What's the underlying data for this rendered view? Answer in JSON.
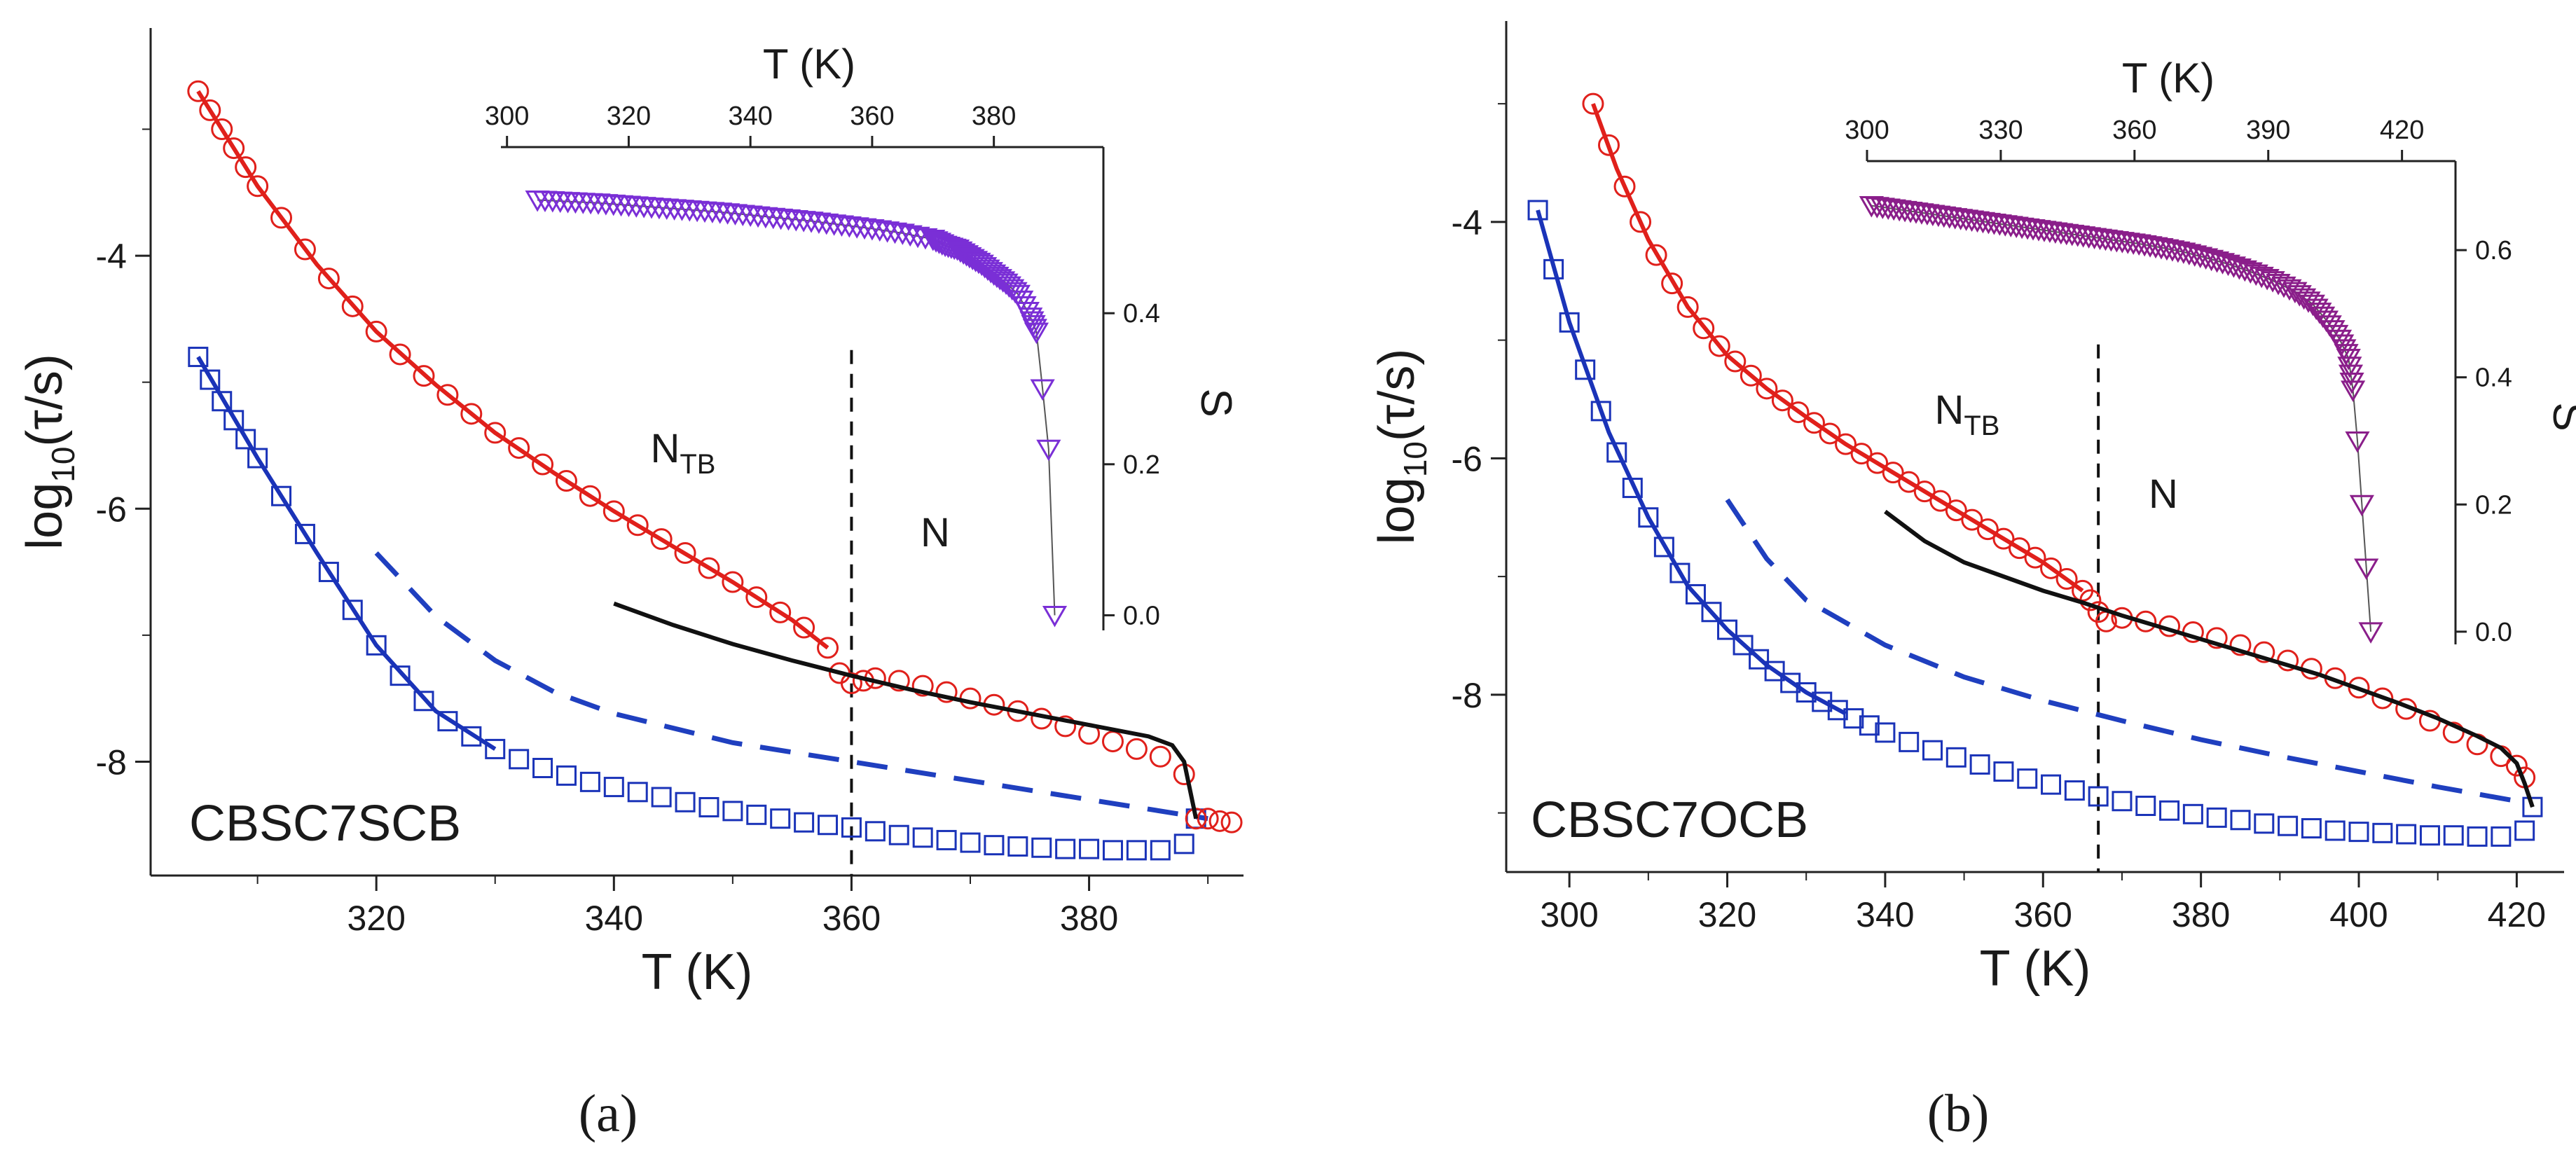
{
  "chart_data": [
    {
      "type": "scatter",
      "panel_label": "(a)",
      "sample_label": "CBSC7SCB",
      "xlabel": "T (K)",
      "ylabel": "log10(τ/s)",
      "ylabel_main": "log",
      "ylabel_sub": "10",
      "ylabel_tail": "(τ/s)",
      "xlim": [
        301,
        393
      ],
      "ylim": [
        -8.9,
        -2.2
      ],
      "xticks": [
        "320",
        "340",
        "360",
        "380"
      ],
      "yticks": [
        "-4",
        "-6",
        "-8"
      ],
      "phase_left_main": "N",
      "phase_left_sub": "TB",
      "phase_right": "N",
      "transition_T": 360,
      "series": [
        {
          "name": "red circles",
          "x": [
            305,
            306,
            307,
            308,
            309,
            310,
            312,
            314,
            316,
            318,
            320,
            322,
            324,
            326,
            328,
            330,
            332,
            334,
            336,
            338,
            340,
            342,
            344,
            346,
            348,
            350,
            352,
            354,
            356,
            358,
            359,
            360,
            361,
            362,
            364,
            366,
            368,
            370,
            372,
            374,
            376,
            378,
            380,
            382,
            384,
            386,
            388,
            389,
            390,
            391,
            392
          ],
          "y": [
            -2.7,
            -2.85,
            -3.0,
            -3.15,
            -3.3,
            -3.45,
            -3.7,
            -3.95,
            -4.18,
            -4.4,
            -4.6,
            -4.78,
            -4.95,
            -5.1,
            -5.25,
            -5.4,
            -5.52,
            -5.65,
            -5.78,
            -5.9,
            -6.02,
            -6.13,
            -6.24,
            -6.35,
            -6.47,
            -6.58,
            -6.7,
            -6.82,
            -6.94,
            -7.1,
            -7.3,
            -7.38,
            -7.36,
            -7.34,
            -7.36,
            -7.4,
            -7.45,
            -7.5,
            -7.55,
            -7.6,
            -7.66,
            -7.72,
            -7.78,
            -7.84,
            -7.9,
            -7.96,
            -8.1,
            -8.45,
            -8.45,
            -8.47,
            -8.48
          ]
        },
        {
          "name": "blue squares",
          "x": [
            305,
            306,
            307,
            308,
            309,
            310,
            312,
            314,
            316,
            318,
            320,
            322,
            324,
            326,
            328,
            330,
            332,
            334,
            336,
            338,
            340,
            342,
            344,
            346,
            348,
            350,
            352,
            354,
            356,
            358,
            360,
            362,
            364,
            366,
            368,
            370,
            372,
            374,
            376,
            378,
            380,
            382,
            384,
            386,
            388,
            389
          ],
          "y": [
            -4.8,
            -4.98,
            -5.15,
            -5.3,
            -5.45,
            -5.6,
            -5.9,
            -6.2,
            -6.5,
            -6.8,
            -7.08,
            -7.32,
            -7.52,
            -7.68,
            -7.8,
            -7.9,
            -7.98,
            -8.05,
            -8.11,
            -8.16,
            -8.2,
            -8.24,
            -8.28,
            -8.32,
            -8.36,
            -8.39,
            -8.42,
            -8.45,
            -8.48,
            -8.5,
            -8.52,
            -8.55,
            -8.58,
            -8.6,
            -8.62,
            -8.64,
            -8.66,
            -8.67,
            -8.68,
            -8.69,
            -8.69,
            -8.7,
            -8.7,
            -8.7,
            -8.65,
            -8.45
          ]
        },
        {
          "name": "red fit",
          "x": [
            305,
            310,
            315,
            320,
            325,
            330,
            335,
            340,
            345,
            350,
            355,
            358
          ],
          "y": [
            -2.7,
            -3.45,
            -4.07,
            -4.6,
            -5.02,
            -5.4,
            -5.72,
            -6.02,
            -6.3,
            -6.58,
            -6.88,
            -7.1
          ]
        },
        {
          "name": "blue fit",
          "x": [
            305,
            310,
            315,
            320,
            325,
            330
          ],
          "y": [
            -4.8,
            -5.6,
            -6.35,
            -7.08,
            -7.6,
            -7.9
          ]
        },
        {
          "name": "black fit",
          "x": [
            340,
            345,
            350,
            355,
            360,
            365,
            370,
            375,
            380,
            385,
            387,
            388,
            389
          ],
          "y": [
            -6.75,
            -6.92,
            -7.07,
            -7.2,
            -7.32,
            -7.43,
            -7.53,
            -7.62,
            -7.71,
            -7.8,
            -7.87,
            -8.0,
            -8.45
          ]
        },
        {
          "name": "blue dashed",
          "x": [
            320,
            325,
            330,
            335,
            340,
            350,
            360,
            370,
            380,
            390
          ],
          "y": [
            -6.35,
            -6.85,
            -7.2,
            -7.45,
            -7.62,
            -7.85,
            -8.0,
            -8.15,
            -8.3,
            -8.45
          ]
        }
      ],
      "inset": {
        "xlabel": "T (K)",
        "ylabel": "S",
        "xlim": [
          299,
          398
        ],
        "ylim": [
          -0.02,
          0.62
        ],
        "xticks": [
          "300",
          "320",
          "340",
          "360",
          "380"
        ],
        "yticks": [
          "0.0",
          "0.2",
          "0.4"
        ],
        "x": [
          305,
          310,
          315,
          320,
          325,
          330,
          335,
          340,
          345,
          350,
          355,
          360,
          365,
          370,
          372,
          374,
          376,
          378,
          380,
          382,
          384,
          386,
          387,
          388,
          389,
          390
        ],
        "y": [
          0.55,
          0.548,
          0.546,
          0.543,
          0.54,
          0.537,
          0.534,
          0.53,
          0.526,
          0.522,
          0.517,
          0.512,
          0.506,
          0.498,
          0.49,
          0.485,
          0.475,
          0.465,
          0.452,
          0.44,
          0.425,
          0.395,
          0.375,
          0.3,
          0.22,
          0.0
        ]
      }
    },
    {
      "type": "scatter",
      "panel_label": "(b)",
      "sample_label": "CBSC7OCB",
      "xlabel": "T (K)",
      "ylabel": "log10(τ/s)",
      "ylabel_main": "log",
      "ylabel_sub": "10",
      "ylabel_tail": "(τ/s)",
      "xlim": [
        292,
        426
      ],
      "ylim": [
        -9.5,
        -2.3
      ],
      "xticks": [
        "300",
        "320",
        "340",
        "360",
        "380",
        "400",
        "420"
      ],
      "yticks": [
        "-4",
        "-6",
        "-8"
      ],
      "phase_left_main": "N",
      "phase_left_sub": "TB",
      "phase_right": "N",
      "transition_T": 367,
      "series": [
        {
          "name": "red circles",
          "x": [
            303,
            305,
            307,
            309,
            311,
            313,
            315,
            317,
            319,
            321,
            323,
            325,
            327,
            329,
            331,
            333,
            335,
            337,
            339,
            341,
            343,
            345,
            347,
            349,
            351,
            353,
            355,
            357,
            359,
            361,
            363,
            365,
            366,
            367,
            368,
            370,
            373,
            376,
            379,
            382,
            385,
            388,
            391,
            394,
            397,
            400,
            403,
            406,
            409,
            412,
            415,
            418,
            420,
            421
          ],
          "y": [
            -3.0,
            -3.35,
            -3.7,
            -4.0,
            -4.28,
            -4.52,
            -4.72,
            -4.9,
            -5.05,
            -5.18,
            -5.3,
            -5.41,
            -5.51,
            -5.61,
            -5.7,
            -5.79,
            -5.88,
            -5.96,
            -6.04,
            -6.12,
            -6.2,
            -6.28,
            -6.36,
            -6.44,
            -6.52,
            -6.6,
            -6.68,
            -6.76,
            -6.84,
            -6.93,
            -7.02,
            -7.12,
            -7.2,
            -7.3,
            -7.38,
            -7.35,
            -7.38,
            -7.42,
            -7.47,
            -7.52,
            -7.58,
            -7.64,
            -7.71,
            -7.78,
            -7.86,
            -7.94,
            -8.03,
            -8.12,
            -8.22,
            -8.32,
            -8.42,
            -8.52,
            -8.6,
            -8.7
          ]
        },
        {
          "name": "blue squares",
          "x": [
            296,
            298,
            300,
            302,
            304,
            306,
            308,
            310,
            312,
            314,
            316,
            318,
            320,
            322,
            324,
            326,
            328,
            330,
            332,
            334,
            336,
            338,
            340,
            343,
            346,
            349,
            352,
            355,
            358,
            361,
            364,
            367,
            370,
            373,
            376,
            379,
            382,
            385,
            388,
            391,
            394,
            397,
            400,
            403,
            406,
            409,
            412,
            415,
            418,
            421,
            422
          ],
          "y": [
            -3.9,
            -4.4,
            -4.85,
            -5.25,
            -5.6,
            -5.95,
            -6.25,
            -6.5,
            -6.75,
            -6.97,
            -7.15,
            -7.3,
            -7.45,
            -7.58,
            -7.7,
            -7.8,
            -7.9,
            -7.98,
            -8.06,
            -8.13,
            -8.2,
            -8.26,
            -8.32,
            -8.4,
            -8.47,
            -8.53,
            -8.59,
            -8.65,
            -8.71,
            -8.76,
            -8.81,
            -8.86,
            -8.9,
            -8.94,
            -8.98,
            -9.01,
            -9.04,
            -9.06,
            -9.09,
            -9.11,
            -9.13,
            -9.15,
            -9.16,
            -9.17,
            -9.18,
            -9.19,
            -9.19,
            -9.2,
            -9.2,
            -9.15,
            -8.95
          ]
        },
        {
          "name": "red fit",
          "x": [
            303,
            306,
            310,
            315,
            320,
            325,
            330,
            335,
            340,
            345,
            350,
            355,
            360,
            365
          ],
          "y": [
            -3.0,
            -3.55,
            -4.15,
            -4.72,
            -5.13,
            -5.41,
            -5.65,
            -5.88,
            -6.08,
            -6.28,
            -6.48,
            -6.68,
            -6.88,
            -7.12
          ]
        },
        {
          "name": "blue fit",
          "x": [
            296,
            300,
            305,
            310,
            315,
            320,
            325,
            330,
            335
          ],
          "y": [
            -3.9,
            -4.85,
            -5.78,
            -6.5,
            -7.08,
            -7.45,
            -7.75,
            -7.98,
            -8.16
          ]
        },
        {
          "name": "black fit",
          "x": [
            340,
            345,
            350,
            355,
            360,
            365,
            370,
            375,
            380,
            385,
            390,
            395,
            400,
            405,
            410,
            415,
            418,
            420,
            421,
            422
          ],
          "y": [
            -6.45,
            -6.7,
            -6.88,
            -7.0,
            -7.12,
            -7.22,
            -7.33,
            -7.43,
            -7.53,
            -7.63,
            -7.73,
            -7.83,
            -7.95,
            -8.07,
            -8.2,
            -8.35,
            -8.45,
            -8.58,
            -8.75,
            -8.95
          ]
        },
        {
          "name": "blue dashed",
          "x": [
            320,
            325,
            330,
            340,
            350,
            360,
            370,
            380,
            390,
            400,
            410,
            420
          ],
          "y": [
            -6.35,
            -6.85,
            -7.2,
            -7.58,
            -7.85,
            -8.05,
            -8.22,
            -8.38,
            -8.52,
            -8.65,
            -8.78,
            -8.9
          ]
        }
      ],
      "inset": {
        "xlabel": "T (K)",
        "ylabel": "S",
        "xlim": [
          300,
          432
        ],
        "ylim": [
          -0.02,
          0.74
        ],
        "xticks": [
          "300",
          "330",
          "360",
          "390",
          "420"
        ],
        "yticks": [
          "0.0",
          "0.2",
          "0.4",
          "0.6"
        ],
        "x": [
          301,
          306,
          311,
          316,
          321,
          326,
          331,
          336,
          341,
          346,
          351,
          356,
          361,
          366,
          371,
          376,
          381,
          386,
          391,
          396,
          400,
          403,
          406,
          408,
          409,
          410,
          411,
          412,
          413
        ],
        "y": [
          0.67,
          0.665,
          0.66,
          0.655,
          0.65,
          0.645,
          0.64,
          0.635,
          0.63,
          0.625,
          0.62,
          0.615,
          0.61,
          0.604,
          0.597,
          0.588,
          0.578,
          0.566,
          0.552,
          0.535,
          0.515,
          0.49,
          0.46,
          0.43,
          0.38,
          0.3,
          0.2,
          0.1,
          0.0
        ]
      }
    }
  ]
}
